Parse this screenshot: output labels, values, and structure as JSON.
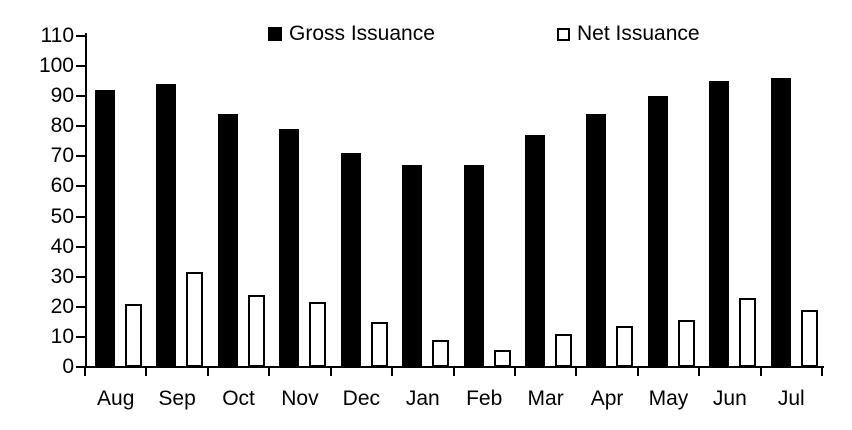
{
  "chart_data": {
    "type": "bar",
    "categories": [
      "Aug",
      "Sep",
      "Oct",
      "Nov",
      "Dec",
      "Jan",
      "Feb",
      "Mar",
      "Apr",
      "May",
      "Jun",
      "Jul"
    ],
    "series": [
      {
        "name": "Gross Issuance",
        "fill": "#000000",
        "stroke": "#000000",
        "values": [
          92,
          94,
          84,
          79,
          71,
          67,
          67,
          77,
          84,
          90,
          95,
          96
        ]
      },
      {
        "name": "Net Issuance",
        "fill": "#ffffff",
        "stroke": "#000000",
        "values": [
          21,
          31.5,
          24,
          21.5,
          15,
          9,
          5.5,
          11,
          13.5,
          15.5,
          23,
          19
        ]
      }
    ],
    "title": "",
    "xlabel": "",
    "ylabel": "",
    "ylim": [
      0,
      110
    ],
    "yticks": [
      0,
      10,
      20,
      30,
      40,
      50,
      60,
      70,
      80,
      90,
      100,
      110
    ],
    "grid": false,
    "legend_position": "top"
  },
  "legend": {
    "gross_label": "Gross Issuance",
    "net_label": "Net Issuance"
  },
  "colors": {
    "axis": "#000000",
    "background": "#ffffff",
    "gross_bar": "#000000",
    "net_bar_fill": "#ffffff",
    "net_bar_stroke": "#000000"
  }
}
